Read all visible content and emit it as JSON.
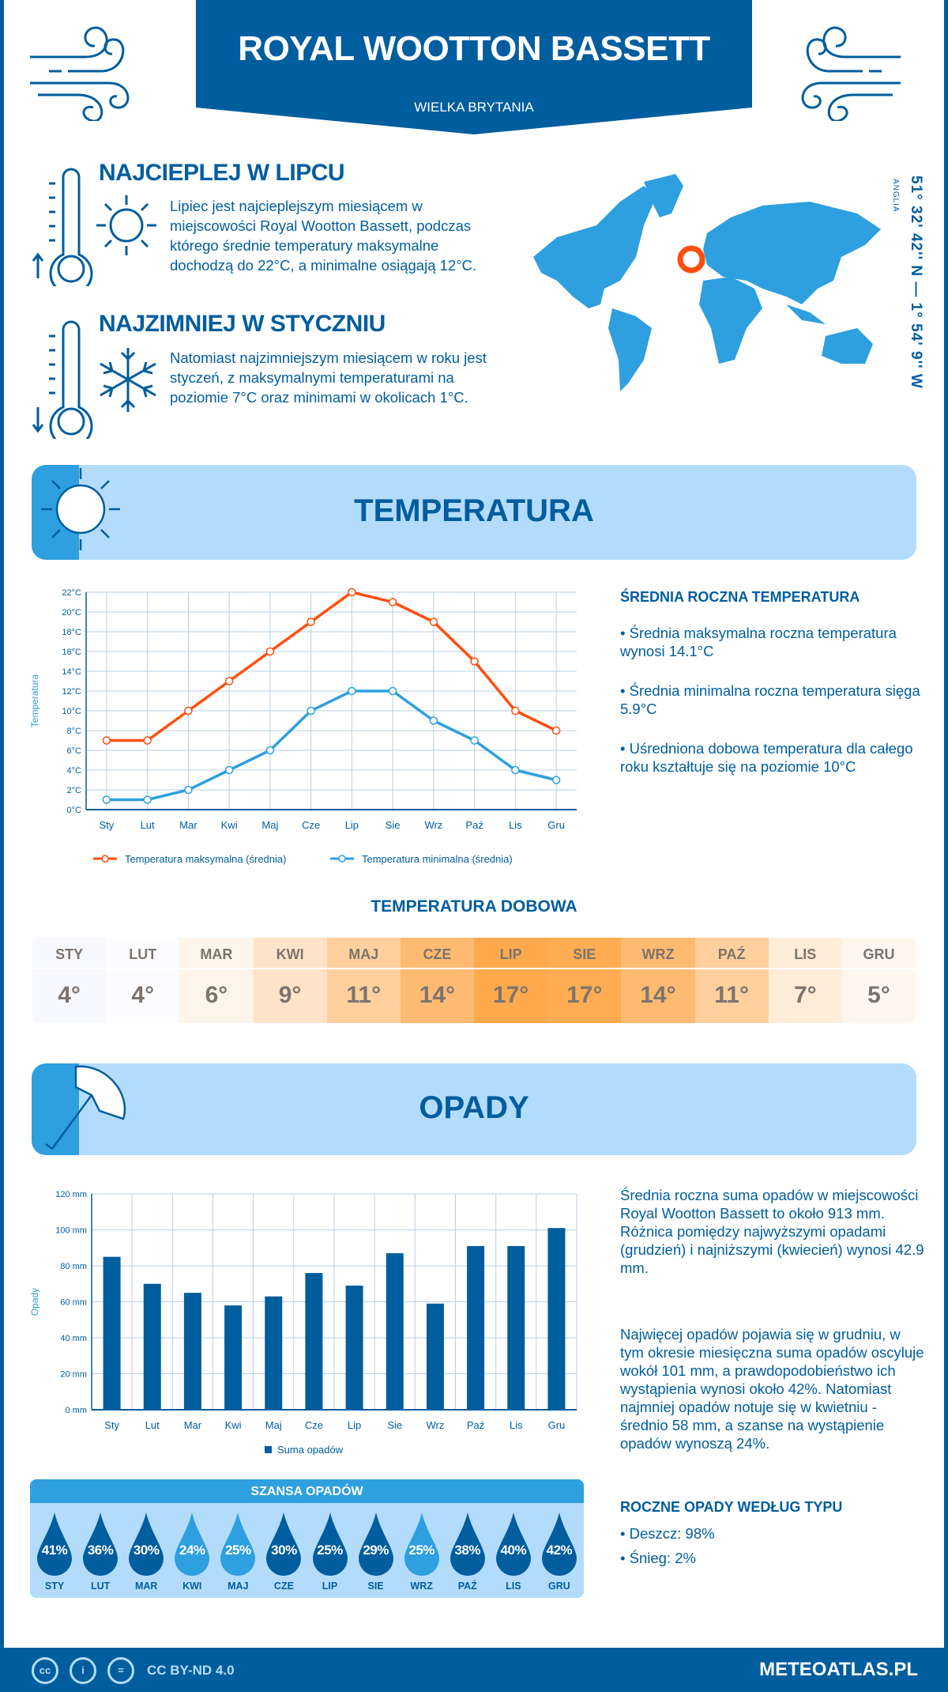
{
  "header": {
    "title": "ROYAL WOOTTON BASSETT",
    "subtitle": "WIELKA BRYTANIA"
  },
  "hot": {
    "heading": "NAJCIEPLEJ W LIPCU",
    "text": "Lipiec jest najcieplejszym miesiącem w miejscowości Royal Wootton Bassett, podczas którego średnie temperatury maksymalne dochodzą do 22°C, a minimalne osiągają 12°C."
  },
  "cold": {
    "heading": "NAJZIMNIEJ W STYCZNIU",
    "text": "Natomiast najzimniejszym miesiącem w roku jest styczeń, z maksymalnymi temperaturami na poziomie 7°C oraz minimami w okolicach 1°C."
  },
  "location": {
    "coordinates": "51° 32' 42'' N — 1° 54' 9'' W",
    "region": "ANGLIA",
    "marker_color": "#ff4f0f"
  },
  "colors": {
    "dark_blue": "#005d9e",
    "light_blue": "#2e9fdf",
    "pale_blue": "#b3dcfc",
    "max_line": "#ff4f0f",
    "min_line": "#2e9fdf"
  },
  "temperature_section": {
    "title": "TEMPERATURA",
    "summary_heading": "ŚREDNIA ROCZNA TEMPERATURA",
    "bullets": [
      "• Średnia maksymalna roczna temperatura wynosi 14.1°C",
      "• Średnia minimalna roczna temperatura sięga 5.9°C",
      "• Uśredniona dobowa temperatura dla całego roku kształtuje się na poziomie 10°C"
    ]
  },
  "daily": {
    "title": "TEMPERATURA DOBOWA",
    "items": [
      {
        "month": "STY",
        "value": "4°",
        "color": "#f8f8ff"
      },
      {
        "month": "LUT",
        "value": "4°",
        "color": "#fcfcff"
      },
      {
        "month": "MAR",
        "value": "6°",
        "color": "#fff4ea"
      },
      {
        "month": "KWI",
        "value": "9°",
        "color": "#ffe3c8"
      },
      {
        "month": "MAJ",
        "value": "11°",
        "color": "#ffcf9e"
      },
      {
        "month": "CZE",
        "value": "14°",
        "color": "#ffba72"
      },
      {
        "month": "LIP",
        "value": "17°",
        "color": "#ffa94d"
      },
      {
        "month": "SIE",
        "value": "17°",
        "color": "#ffac52"
      },
      {
        "month": "WRZ",
        "value": "14°",
        "color": "#ffba72"
      },
      {
        "month": "PAŹ",
        "value": "11°",
        "color": "#ffcf9e"
      },
      {
        "month": "LIS",
        "value": "7°",
        "color": "#ffecd9"
      },
      {
        "month": "GRU",
        "value": "5°",
        "color": "#fff7ee"
      }
    ]
  },
  "precip_section": {
    "title": "OPADY",
    "text1": "Średnia roczna suma opadów w miejscowości Royal Wootton Bassett to około 913 mm. Różnica pomiędzy najwyższymi opadami (grudzień) i najniższymi (kwiecień) wynosi 42.9 mm.",
    "text2": "Najwięcej opadów pojawia się w grudniu, w tym okresie miesięczna suma opadów oscyluje wokół 101 mm, a prawdopodobieństwo ich wystąpienia wynosi około 42%. Natomiast najmniej opadów notuje się w kwietniu - średnio 58 mm, a szanse na wystąpienie opadów wynoszą 24%.",
    "types_heading": "ROCZNE OPADY WEDŁUG TYPU",
    "types": [
      "• Deszcz: 98%",
      "• Śnieg: 2%"
    ]
  },
  "chance": {
    "title": "SZANSA OPADÓW",
    "items": [
      {
        "month": "STY",
        "value": "41%",
        "color": "#005d9e"
      },
      {
        "month": "LUT",
        "value": "36%",
        "color": "#005d9e"
      },
      {
        "month": "MAR",
        "value": "30%",
        "color": "#005d9e"
      },
      {
        "month": "KWI",
        "value": "24%",
        "color": "#2e9fdf"
      },
      {
        "month": "MAJ",
        "value": "25%",
        "color": "#2e9fdf"
      },
      {
        "month": "CZE",
        "value": "30%",
        "color": "#005d9e"
      },
      {
        "month": "LIP",
        "value": "25%",
        "color": "#005d9e"
      },
      {
        "month": "SIE",
        "value": "29%",
        "color": "#005d9e"
      },
      {
        "month": "WRZ",
        "value": "25%",
        "color": "#2e9fdf"
      },
      {
        "month": "PAŹ",
        "value": "38%",
        "color": "#005d9e"
      },
      {
        "month": "LIS",
        "value": "40%",
        "color": "#005d9e"
      },
      {
        "month": "GRU",
        "value": "42%",
        "color": "#005d9e"
      }
    ]
  },
  "footer": {
    "license": "CC BY-ND 4.0",
    "brand": "METEOATLAS.PL",
    "cc": "cc",
    "eq": "="
  },
  "chart_data": [
    {
      "type": "line",
      "categories": [
        "Sty",
        "Lut",
        "Mar",
        "Kwi",
        "Maj",
        "Cze",
        "Lip",
        "Sie",
        "Wrz",
        "Paź",
        "Lis",
        "Gru"
      ],
      "ylabel": "Temperatura",
      "ylim": [
        0,
        22
      ],
      "yticks": [
        "0°C",
        "2°C",
        "4°C",
        "6°C",
        "8°C",
        "10°C",
        "12°C",
        "14°C",
        "16°C",
        "18°C",
        "20°C",
        "22°C"
      ],
      "grid": true,
      "legend": "bottom",
      "series": [
        {
          "name": "Temperatura maksymalna (średnia)",
          "color": "#ff4f0f",
          "values": [
            7,
            7,
            10,
            13,
            16,
            19,
            22,
            21,
            19,
            15,
            10,
            8
          ]
        },
        {
          "name": "Temperatura minimalna (średnia)",
          "color": "#2e9fdf",
          "values": [
            1,
            1,
            2,
            4,
            6,
            10,
            12,
            12,
            9,
            7,
            4,
            3
          ]
        }
      ]
    },
    {
      "type": "bar",
      "categories": [
        "Sty",
        "Lut",
        "Mar",
        "Kwi",
        "Maj",
        "Cze",
        "Lip",
        "Sie",
        "Wrz",
        "Paź",
        "Lis",
        "Gru"
      ],
      "ylabel": "Opady",
      "ylim": [
        0,
        120
      ],
      "yticks": [
        "0 mm",
        "20 mm",
        "40 mm",
        "60 mm",
        "80 mm",
        "100 mm",
        "120 mm"
      ],
      "grid": true,
      "legend": "bottom",
      "series": [
        {
          "name": "Suma opadów",
          "color": "#005d9e",
          "values": [
            85,
            70,
            65,
            58,
            63,
            76,
            69,
            87,
            59,
            91,
            91,
            101
          ]
        }
      ]
    }
  ]
}
